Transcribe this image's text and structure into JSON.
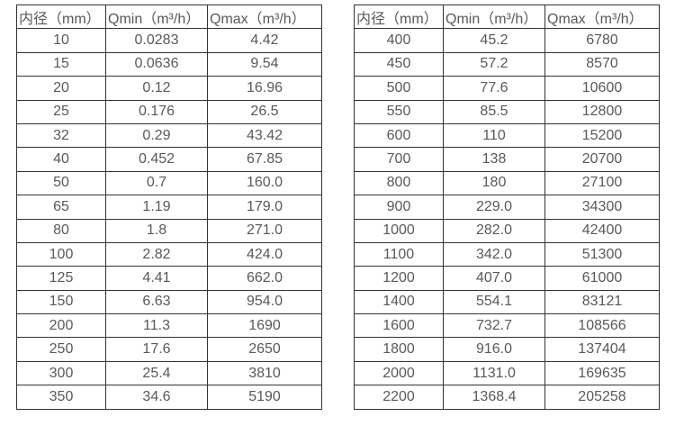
{
  "colors": {
    "border": "#333333",
    "text": "#595959",
    "background": "#ffffff"
  },
  "tables": [
    {
      "headers": [
        "内径（mm）",
        "Qmin（m³/h）",
        "Qmax（m³/h）"
      ],
      "rows": [
        [
          "10",
          "0.0283",
          "4.42"
        ],
        [
          "15",
          "0.0636",
          "9.54"
        ],
        [
          "20",
          "0.12",
          "16.96"
        ],
        [
          "25",
          "0.176",
          "26.5"
        ],
        [
          "32",
          "0.29",
          "43.42"
        ],
        [
          "40",
          "0.452",
          "67.85"
        ],
        [
          "50",
          "0.7",
          "160.0"
        ],
        [
          "65",
          "1.19",
          "179.0"
        ],
        [
          "80",
          "1.8",
          "271.0"
        ],
        [
          "100",
          "2.82",
          "424.0"
        ],
        [
          "125",
          "4.41",
          "662.0"
        ],
        [
          "150",
          "6.63",
          "954.0"
        ],
        [
          "200",
          "11.3",
          "1690"
        ],
        [
          "250",
          "17.6",
          "2650"
        ],
        [
          "300",
          "25.4",
          "3810"
        ],
        [
          "350",
          "34.6",
          "5190"
        ]
      ]
    },
    {
      "headers": [
        "内径（mm）",
        "Qmin（m³/h）",
        "Qmax（m³/h）"
      ],
      "rows": [
        [
          "400",
          "45.2",
          "6780"
        ],
        [
          "450",
          "57.2",
          "8570"
        ],
        [
          "500",
          "77.6",
          "10600"
        ],
        [
          "550",
          "85.5",
          "12800"
        ],
        [
          "600",
          "110",
          "15200"
        ],
        [
          "700",
          "138",
          "20700"
        ],
        [
          "800",
          "180",
          "27100"
        ],
        [
          "900",
          "229.0",
          "34300"
        ],
        [
          "1000",
          "282.0",
          "42400"
        ],
        [
          "1100",
          "342.0",
          "51300"
        ],
        [
          "1200",
          "407.0",
          "61000"
        ],
        [
          "1400",
          "554.1",
          "83121"
        ],
        [
          "1600",
          "732.7",
          "108566"
        ],
        [
          "1800",
          "916.0",
          "137404"
        ],
        [
          "2000",
          "1131.0",
          "169635"
        ],
        [
          "2200",
          "1368.4",
          "205258"
        ]
      ]
    }
  ]
}
